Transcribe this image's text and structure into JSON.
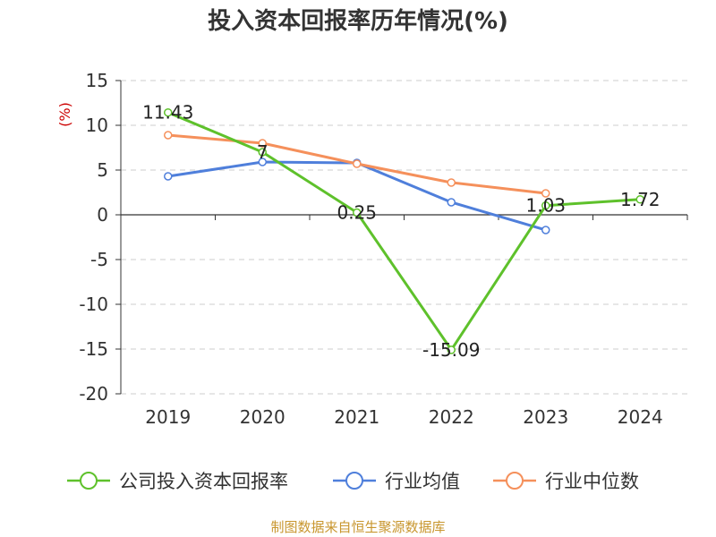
{
  "chart_data": {
    "type": "line",
    "title": "投入资本回报率历年情况(%)",
    "ylabel": "(%)",
    "xlabel": "",
    "categories": [
      "2019",
      "2020",
      "2021",
      "2022",
      "2023",
      "2024"
    ],
    "ylim": [
      -20,
      15
    ],
    "yticks": [
      15,
      10,
      5,
      0,
      -5,
      -10,
      -15,
      -20
    ],
    "grid": true,
    "legend_position": "bottom",
    "series": [
      {
        "name": "公司投入资本回报率",
        "color": "#5ec12b",
        "values": [
          11.43,
          7,
          0.25,
          -15.09,
          1.03,
          1.72
        ],
        "labels": [
          "11.43",
          "7",
          "0.25",
          "-15.09",
          "1.03",
          "1.72"
        ]
      },
      {
        "name": "行业均值",
        "color": "#4f7fdb",
        "values": [
          4.3,
          5.9,
          5.8,
          1.4,
          -1.7,
          null
        ]
      },
      {
        "name": "行业中位数",
        "color": "#f5905b",
        "values": [
          8.9,
          8.0,
          5.7,
          3.6,
          2.4,
          null
        ]
      }
    ]
  },
  "source": "制图数据来自恒生聚源数据库"
}
